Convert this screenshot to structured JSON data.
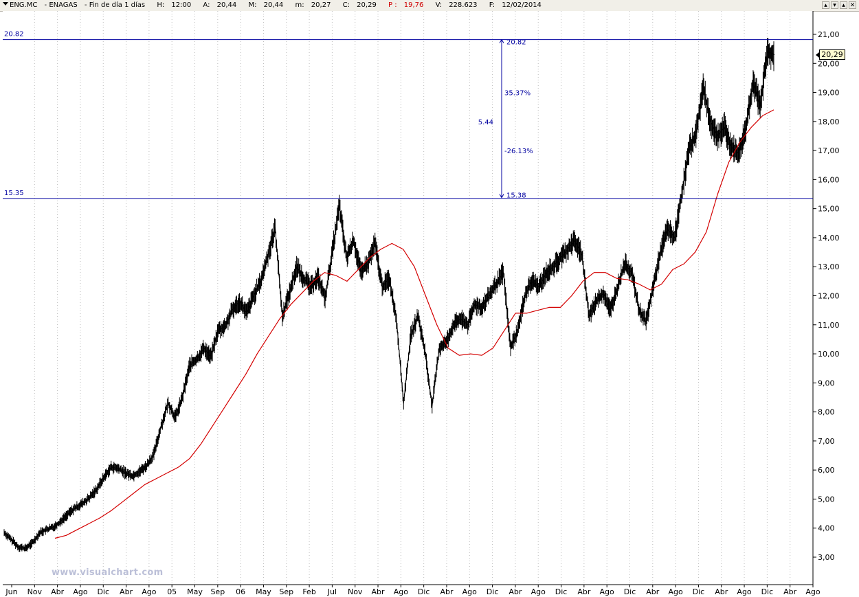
{
  "header": {
    "symbol": "ENG.MC",
    "name": "ENAGAS",
    "period": "Fin de día 1 días",
    "h_label": "H:",
    "h_value": "12:00",
    "a_label": "A:",
    "a_value": "20,44",
    "m_label": "M:",
    "m_value": "20,44",
    "mn_label": "m:",
    "mn_value": "20,27",
    "c_label": "C:",
    "c_value": "20,29",
    "p_label": "P :",
    "p_value": "19,76",
    "v_label": "V:",
    "v_value": "228.623",
    "f_label": "F:",
    "f_value": "12/02/2014"
  },
  "window_buttons": [
    "▴",
    "▾",
    "▴",
    "✕"
  ],
  "watermark": "www.visualchart.com",
  "price_tag": "20,29",
  "colors": {
    "price": "#000000",
    "moving_average": "#d40000",
    "annotation": "#0000a0",
    "grid": "#bdbdbd",
    "titlebar_bg": "#f1efe8"
  },
  "chart_data": {
    "type": "line",
    "title": "ENG.MC - ENAGAS - Fin de día 1 días",
    "ylim": [
      2.3,
      21.85
    ],
    "y_ticks": [
      "3,00",
      "4,00",
      "5,00",
      "6,00",
      "7,00",
      "8,00",
      "9,00",
      "10,00",
      "11,00",
      "12,00",
      "13,00",
      "14,00",
      "15,00",
      "16,00",
      "17,00",
      "18,00",
      "19,00",
      "20,00",
      "21,00"
    ],
    "x_ticks": [
      "Jun",
      "Nov",
      "Abr",
      "Ago",
      "Dic",
      "Abr",
      "Ago",
      "05",
      "May",
      "Sep",
      "06",
      "May",
      "Sep",
      "Feb",
      "Jul",
      "Nov",
      "Abr",
      "Ago",
      "Dic",
      "Abr",
      "Ago",
      "Dic",
      "Abr",
      "Ago",
      "Dic",
      "Abr",
      "Ago",
      "Dic",
      "Abr",
      "Ago",
      "Dic",
      "Abr",
      "Ago",
      "Dic",
      "Abr",
      "Ago"
    ],
    "grid": "vertical dotted",
    "x_range": "Jun 2002 – Ago 2014",
    "series": [
      {
        "values": [
          3.85,
          3.6,
          3.35,
          3.3,
          3.5,
          3.85,
          3.95,
          4.05,
          4.25,
          4.5,
          4.7,
          4.85,
          5.05,
          5.35,
          5.75,
          6.1,
          6.05,
          5.9,
          5.8,
          5.95,
          6.15,
          6.55,
          7.5,
          8.3,
          7.8,
          8.5,
          9.6,
          9.8,
          10.2,
          9.9,
          10.8,
          10.95,
          11.5,
          11.8,
          11.4,
          12.0,
          12.5,
          13.4,
          14.35,
          11.3,
          12.1,
          13.0,
          12.6,
          12.3,
          12.65,
          11.9,
          13.5,
          15.1,
          13.3,
          13.9,
          12.8,
          13.1,
          13.8,
          12.3,
          12.6,
          11.2,
          8.3,
          10.6,
          11.3,
          10.1,
          8.2,
          10.2,
          10.4,
          11.0,
          11.2,
          11.0,
          11.7,
          11.6,
          12.0,
          12.4,
          12.8,
          10.2,
          10.8,
          12.0,
          12.5,
          12.3,
          12.8,
          13.0,
          13.3,
          13.6,
          13.9,
          13.4,
          11.3,
          11.8,
          12.1,
          11.5,
          12.3,
          13.1,
          12.8,
          11.5,
          11.1,
          12.3,
          13.5,
          14.3,
          14.0,
          15.5,
          17.0,
          17.6,
          19.2,
          18.0,
          17.5,
          17.8,
          17.1,
          16.9,
          17.8,
          19.4,
          18.5,
          20.4,
          20.3
        ],
        "color": "#000000"
      },
      {
        "values": [
          3.65,
          3.75,
          3.95,
          4.15,
          4.35,
          4.6,
          4.9,
          5.2,
          5.5,
          5.7,
          5.9,
          6.1,
          6.4,
          6.9,
          7.5,
          8.1,
          8.7,
          9.3,
          10.0,
          10.6,
          11.2,
          11.7,
          12.1,
          12.5,
          12.8,
          12.7,
          12.5,
          12.9,
          13.3,
          13.6,
          13.8,
          13.6,
          13.0,
          12.0,
          11.0,
          10.2,
          9.95,
          10.0,
          9.95,
          10.2,
          10.8,
          11.4,
          11.4,
          11.5,
          11.6,
          11.6,
          12.0,
          12.5,
          12.8,
          12.8,
          12.6,
          12.55,
          12.4,
          12.2,
          12.4,
          12.9,
          13.1,
          13.5,
          14.2,
          15.5,
          16.6,
          17.3,
          17.8,
          18.2,
          18.4
        ],
        "color": "#d40000"
      }
    ],
    "levels": [
      {
        "label": "20.82",
        "value": 20.82
      },
      {
        "label": "15.35",
        "value": 15.35
      }
    ],
    "measure": {
      "top_label": "20.82",
      "bottom_label": "15.38",
      "diff": "5.44",
      "pct_up": "35.37%",
      "pct_down": "-26.13%"
    }
  }
}
